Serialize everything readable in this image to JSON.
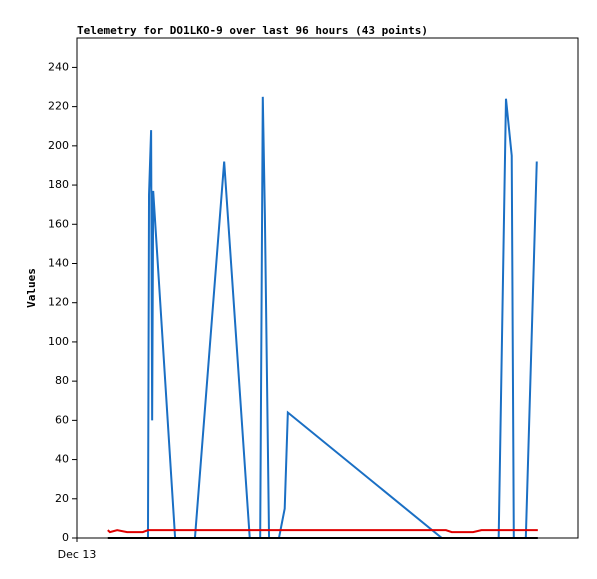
{
  "chart_data": {
    "type": "line",
    "title": "Telemetry for DO1LKO-9 over last 96 hours (43 points)",
    "ylabel": "Values",
    "xlim": [
      0,
      96
    ],
    "ylim": [
      0,
      255
    ],
    "xticks": [
      {
        "value": 0,
        "label": "Dec 13"
      }
    ],
    "yticks": [
      0,
      20,
      40,
      60,
      80,
      100,
      120,
      140,
      160,
      180,
      200,
      220,
      240
    ],
    "series": [
      {
        "color": "#1a6fc4",
        "x": [
          13.6,
          13.8,
          14.2,
          14.4,
          14.6,
          18.8,
          22.6,
          28.2,
          33.1,
          35.1,
          35.6,
          36.0,
          36.8,
          38.7,
          39.8,
          40.4,
          69.9,
          80.8,
          82.2,
          83.3,
          83.7,
          86.0,
          88.1
        ],
        "values": [
          0,
          175,
          208,
          60,
          177,
          0,
          0,
          192,
          0,
          0,
          225,
          165,
          0,
          0,
          15,
          64,
          0,
          0,
          224,
          195,
          0,
          0,
          192
        ]
      },
      {
        "color": "#e00000",
        "x": [
          5.9,
          6.3,
          7.7,
          9.6,
          12.6,
          13.6,
          70.7,
          71.8,
          75.9,
          77.5,
          88.3
        ],
        "values": [
          4,
          3,
          4,
          3,
          3,
          4,
          4,
          3,
          3,
          4,
          4
        ]
      },
      {
        "color": "#000000",
        "x": [
          5.9,
          88.3
        ],
        "values": [
          0,
          0
        ]
      }
    ]
  }
}
